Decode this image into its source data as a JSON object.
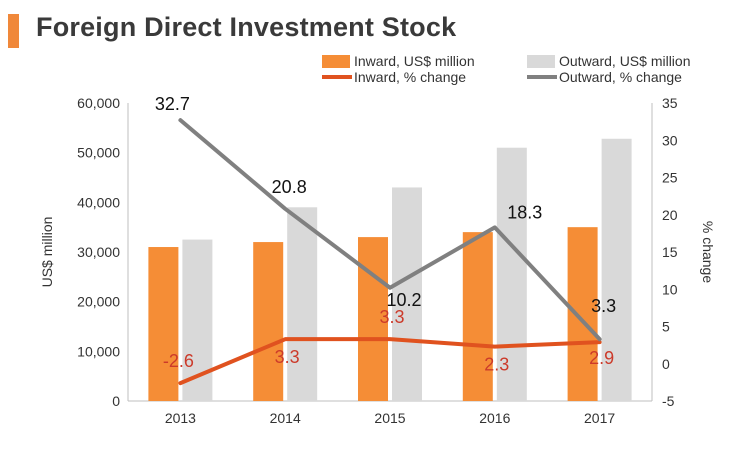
{
  "title": "Foreign Direct Investment Stock",
  "colors": {
    "accent": "#f0883a",
    "inward_bar": "#f58d36",
    "outward_bar": "#d9d9d9",
    "inward_line": "#e0521f",
    "outward_line": "#808080",
    "inward_label": "#cc3a2a",
    "axis": "#bfbfbf"
  },
  "chart_data": {
    "type": "bar",
    "categories": [
      "2013",
      "2014",
      "2015",
      "2016",
      "2017"
    ],
    "series": [
      {
        "name": "Inward, US$ million",
        "type": "bar",
        "axis": "left",
        "values": [
          31000,
          32000,
          33000,
          34000,
          35000
        ]
      },
      {
        "name": "Outward, US$ million",
        "type": "bar",
        "axis": "left",
        "values": [
          32500,
          39000,
          43000,
          51000,
          52800
        ]
      },
      {
        "name": "Inward, % change",
        "type": "line",
        "axis": "right",
        "values": [
          -2.6,
          3.3,
          3.3,
          2.3,
          2.9
        ],
        "labels": [
          "-2.6",
          "3.3",
          "3.3",
          "2.3",
          "2.9"
        ]
      },
      {
        "name": "Outward, % change",
        "type": "line",
        "axis": "right",
        "values": [
          32.7,
          20.8,
          10.2,
          18.3,
          3.3
        ],
        "labels": [
          "32.7",
          "20.8",
          "10.2",
          "18.3",
          "3.3"
        ]
      }
    ],
    "ylabel": "US$ million",
    "ylim": [
      0,
      60000
    ],
    "yticks": [
      "0",
      "10,000",
      "20,000",
      "30,000",
      "40,000",
      "50,000",
      "60,000"
    ],
    "y2label": "% change",
    "y2lim": [
      -5,
      35
    ],
    "y2ticks": [
      "-5",
      "0",
      "5",
      "10",
      "15",
      "20",
      "25",
      "30",
      "35"
    ],
    "grid": false,
    "legend_position": "top"
  }
}
